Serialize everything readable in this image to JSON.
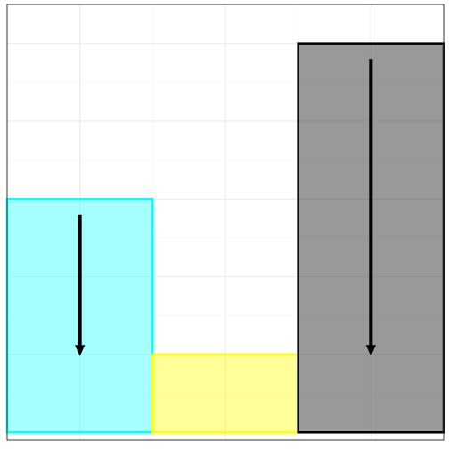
{
  "chart_data": {
    "type": "bar",
    "grid": true,
    "legend": "none",
    "x": [
      1,
      2,
      3
    ],
    "xlim": [
      0.5,
      3.5
    ],
    "ylim": [
      -0.1,
      5.5
    ],
    "bars": [
      {
        "x": 1,
        "ymin": 0,
        "ymax": 3,
        "fill": "#00ffff",
        "stroke": "#00ffff",
        "opacity": 0.35
      },
      {
        "x": 2,
        "ymin": 0,
        "ymax": 1,
        "fill": "#ffff00",
        "stroke": "#ffff00",
        "opacity": 0.4
      },
      {
        "x": 3,
        "ymin": 0,
        "ymax": 5,
        "fill": "#000000",
        "stroke": "#000000",
        "opacity": 0.4
      }
    ],
    "arrows": [
      {
        "x": 1,
        "y_from": 2.8,
        "y_to": 1.0,
        "color": "#000000"
      },
      {
        "x": 3,
        "y_from": 4.8,
        "y_to": 1.0,
        "color": "#000000"
      }
    ]
  },
  "colors": {
    "panel_border": "#333333",
    "grid_major": "#ebebeb",
    "grid_minor": "#f5f5f5",
    "background": "#ffffff"
  }
}
